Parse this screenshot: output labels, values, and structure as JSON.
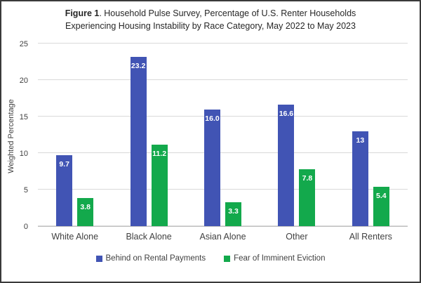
{
  "title": {
    "prefix": "Figure 1",
    "line1_rest": ". Household Pulse Survey, Percentage of U.S. Renter Households",
    "line2": "Experiencing Housing Instability by Race Category, May 2022 to May 2023"
  },
  "y_axis_title": "Weighted Percentage",
  "chart_data": {
    "type": "bar",
    "title": "Figure 1. Household Pulse Survey, Percentage of U.S. Renter Households Experiencing Housing Instability by Race Category, May 2022 to May 2023",
    "categories": [
      "White Alone",
      "Black Alone",
      "Asian Alone",
      "Other",
      "All Renters"
    ],
    "series": [
      {
        "name": "Behind on Rental Payments",
        "color": "#4154b4",
        "values": [
          9.7,
          23.2,
          16.0,
          16.6,
          13
        ],
        "labels": [
          "9.7",
          "23.2",
          "16.0",
          "16.6",
          "13"
        ]
      },
      {
        "name": "Fear of Imminent Eviction",
        "color": "#13a94c",
        "values": [
          3.8,
          11.2,
          3.3,
          7.8,
          5.4
        ],
        "labels": [
          "3.8",
          "11.2",
          "3.3",
          "7.8",
          "5.4"
        ]
      }
    ],
    "xlabel": "",
    "ylabel": "Weighted Percentage",
    "ylim": [
      0,
      25
    ],
    "yticks": [
      0,
      5,
      10,
      15,
      20,
      25
    ],
    "grid": true,
    "legend_position": "bottom",
    "data_label_color": "#ffffff"
  },
  "colors": {
    "gridline": "#d9d9d9",
    "axis_line": "#bfbfbf",
    "frame_border": "#3a3a3a",
    "axis_text": "#404040",
    "title_text": "#262626"
  }
}
